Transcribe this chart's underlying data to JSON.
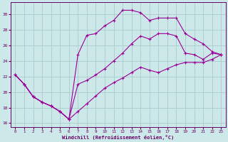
{
  "xlabel": "Windchill (Refroidissement éolien,°C)",
  "bg_color": "#cde8e8",
  "grid_color": "#aacccc",
  "line_color": "#990099",
  "xlim": [
    -0.5,
    23.5
  ],
  "ylim": [
    15.5,
    31.5
  ],
  "xticks": [
    0,
    1,
    2,
    3,
    4,
    5,
    6,
    7,
    8,
    9,
    10,
    11,
    12,
    13,
    14,
    15,
    16,
    17,
    18,
    19,
    20,
    21,
    22,
    23
  ],
  "yticks": [
    16,
    18,
    20,
    22,
    24,
    26,
    28,
    30
  ],
  "line1_x": [
    0,
    1,
    2,
    3,
    4,
    5,
    6,
    7,
    8,
    9,
    10,
    11,
    12,
    13,
    14,
    15,
    16,
    17,
    18,
    19,
    20,
    21,
    22,
    23
  ],
  "line1_y": [
    22.2,
    21.0,
    19.4,
    18.7,
    18.2,
    17.5,
    16.5,
    24.8,
    27.3,
    27.5,
    28.5,
    29.2,
    30.5,
    30.5,
    30.2,
    29.2,
    29.5,
    29.5,
    29.5,
    27.5,
    26.8,
    26.2,
    25.2,
    24.8
  ],
  "line2_x": [
    0,
    1,
    2,
    3,
    4,
    5,
    6,
    7,
    8,
    9,
    10,
    11,
    12,
    13,
    14,
    15,
    16,
    17,
    18,
    19,
    20,
    21,
    22,
    23
  ],
  "line2_y": [
    22.2,
    21.0,
    19.4,
    18.7,
    18.2,
    17.5,
    16.5,
    21.0,
    21.5,
    22.2,
    23.0,
    24.0,
    25.0,
    26.2,
    27.2,
    26.8,
    27.5,
    27.5,
    27.2,
    25.0,
    24.8,
    24.2,
    25.0,
    24.8
  ],
  "line3_x": [
    0,
    1,
    2,
    3,
    4,
    5,
    6,
    7,
    8,
    9,
    10,
    11,
    12,
    13,
    14,
    15,
    16,
    17,
    18,
    19,
    20,
    21,
    22,
    23
  ],
  "line3_y": [
    22.2,
    21.0,
    19.4,
    18.7,
    18.2,
    17.5,
    16.5,
    17.5,
    18.5,
    19.5,
    20.5,
    21.2,
    21.8,
    22.5,
    23.2,
    22.8,
    22.5,
    23.0,
    23.5,
    23.8,
    23.8,
    23.8,
    24.2,
    24.8
  ]
}
